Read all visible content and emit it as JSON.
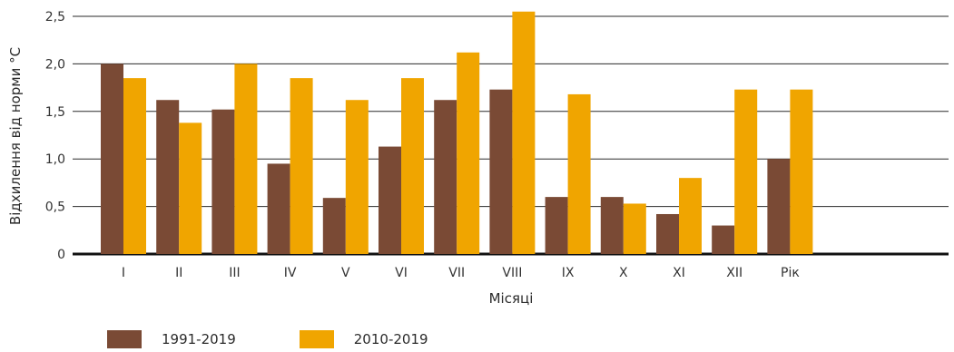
{
  "chart_data": {
    "type": "bar",
    "categories": [
      "I",
      "II",
      "III",
      "IV",
      "V",
      "VI",
      "VII",
      "VIII",
      "IX",
      "X",
      "XI",
      "XII",
      "Рік"
    ],
    "series": [
      {
        "name": "1991-2019",
        "values": [
          2.0,
          1.62,
          1.52,
          0.95,
          0.59,
          1.13,
          1.62,
          1.73,
          0.6,
          0.6,
          0.42,
          0.3,
          1.0
        ],
        "color": "#7a4a35"
      },
      {
        "name": "2010-2019",
        "values": [
          1.85,
          1.38,
          2.0,
          1.85,
          1.62,
          1.85,
          2.12,
          2.55,
          1.68,
          0.53,
          0.8,
          1.73,
          1.73
        ],
        "color": "#f0a500"
      }
    ],
    "title": "",
    "xlabel": "Місяці",
    "ylabel": "Відхилення від норми °С",
    "ylim": [
      0,
      2.5
    ],
    "yticks": [
      "0",
      "0,5",
      "1,0",
      "1,5",
      "2,0",
      "2,5"
    ],
    "grid": true,
    "legend_position": "bottom-left"
  }
}
